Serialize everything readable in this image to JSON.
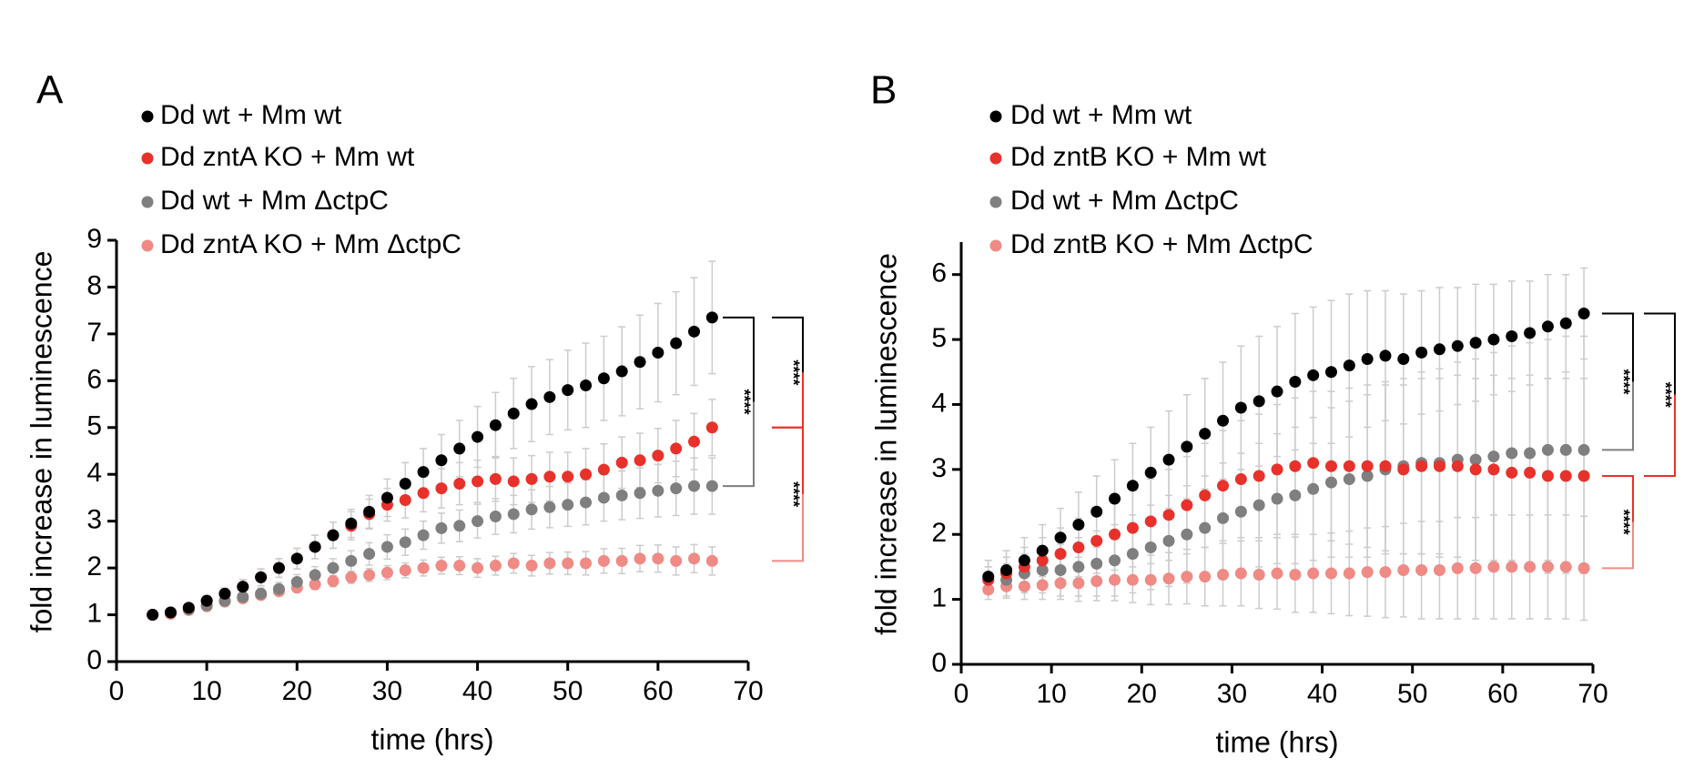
{
  "chart_data": [
    {
      "type": "scatter",
      "panel_label": "A",
      "xlabel": "time (hrs)",
      "ylabel": "fold increase in luminescence",
      "xlim": [
        0,
        70
      ],
      "xticks": [
        0,
        10,
        20,
        30,
        40,
        50,
        60,
        70
      ],
      "ylim": [
        0,
        9
      ],
      "yticks": [
        0,
        1,
        2,
        3,
        4,
        5,
        6,
        7,
        8,
        9
      ],
      "error_color": "#cccccc",
      "x": [
        4,
        6,
        8,
        10,
        12,
        14,
        16,
        18,
        20,
        22,
        24,
        26,
        28,
        30,
        32,
        34,
        36,
        38,
        40,
        42,
        44,
        46,
        48,
        50,
        52,
        54,
        56,
        58,
        60,
        62,
        64,
        66
      ],
      "series": [
        {
          "name": "Dd wt + Mm wt",
          "color": "#000000",
          "values": [
            1.0,
            1.05,
            1.15,
            1.3,
            1.45,
            1.6,
            1.8,
            2.0,
            2.2,
            2.45,
            2.7,
            2.95,
            3.2,
            3.5,
            3.8,
            4.05,
            4.3,
            4.55,
            4.8,
            5.05,
            5.3,
            5.5,
            5.65,
            5.8,
            5.9,
            6.05,
            6.2,
            6.4,
            6.6,
            6.8,
            7.05,
            7.35
          ],
          "errors": [
            0.03,
            0.05,
            0.07,
            0.1,
            0.12,
            0.15,
            0.18,
            0.2,
            0.22,
            0.25,
            0.28,
            0.3,
            0.35,
            0.4,
            0.45,
            0.5,
            0.55,
            0.6,
            0.65,
            0.7,
            0.75,
            0.8,
            0.8,
            0.85,
            0.9,
            0.9,
            0.95,
            1.0,
            1.05,
            1.1,
            1.15,
            1.2
          ]
        },
        {
          "name": "Dd zntA KO + Mm wt",
          "color": "#e8312a",
          "values": [
            1.0,
            1.05,
            1.15,
            1.3,
            1.45,
            1.6,
            1.8,
            2.0,
            2.2,
            2.45,
            2.7,
            2.9,
            3.15,
            3.35,
            3.45,
            3.6,
            3.7,
            3.8,
            3.85,
            3.9,
            3.85,
            3.9,
            3.95,
            3.95,
            4.0,
            4.1,
            4.25,
            4.3,
            4.4,
            4.55,
            4.7,
            5.0
          ],
          "errors": [
            0.03,
            0.05,
            0.07,
            0.1,
            0.12,
            0.15,
            0.18,
            0.2,
            0.22,
            0.25,
            0.28,
            0.3,
            0.32,
            0.35,
            0.38,
            0.4,
            0.42,
            0.45,
            0.45,
            0.48,
            0.5,
            0.5,
            0.52,
            0.52,
            0.55,
            0.55,
            0.55,
            0.58,
            0.58,
            0.6,
            0.6,
            0.6
          ]
        },
        {
          "name": "Dd wt + Mm ΔctpC",
          "color": "#7f7f7f",
          "values": [
            1.0,
            1.05,
            1.12,
            1.2,
            1.3,
            1.38,
            1.45,
            1.55,
            1.7,
            1.85,
            2.0,
            2.15,
            2.3,
            2.45,
            2.55,
            2.7,
            2.85,
            2.9,
            3.0,
            3.1,
            3.15,
            3.25,
            3.3,
            3.35,
            3.4,
            3.5,
            3.55,
            3.6,
            3.65,
            3.7,
            3.75,
            3.75
          ],
          "errors": [
            0.03,
            0.04,
            0.05,
            0.06,
            0.08,
            0.1,
            0.12,
            0.14,
            0.16,
            0.18,
            0.2,
            0.22,
            0.24,
            0.26,
            0.28,
            0.3,
            0.32,
            0.34,
            0.36,
            0.38,
            0.4,
            0.42,
            0.44,
            0.46,
            0.48,
            0.5,
            0.52,
            0.54,
            0.56,
            0.58,
            0.6,
            0.6
          ]
        },
        {
          "name": "Dd zntA KO + Mm ΔctpC",
          "color": "#ef8a85",
          "values": [
            1.0,
            1.02,
            1.1,
            1.18,
            1.28,
            1.35,
            1.42,
            1.5,
            1.58,
            1.65,
            1.72,
            1.8,
            1.85,
            1.9,
            1.95,
            2.0,
            2.05,
            2.05,
            2.0,
            2.05,
            2.1,
            2.05,
            2.1,
            2.1,
            2.1,
            2.15,
            2.15,
            2.2,
            2.2,
            2.15,
            2.2,
            2.15
          ],
          "errors": [
            0.03,
            0.03,
            0.04,
            0.05,
            0.06,
            0.07,
            0.08,
            0.09,
            0.1,
            0.11,
            0.12,
            0.13,
            0.14,
            0.15,
            0.16,
            0.17,
            0.18,
            0.19,
            0.2,
            0.2,
            0.21,
            0.22,
            0.23,
            0.24,
            0.25,
            0.26,
            0.27,
            0.28,
            0.29,
            0.3,
            0.3,
            0.3
          ]
        }
      ],
      "comparisons": [
        {
          "series": [
            0,
            2
          ],
          "label": "****"
        },
        {
          "series": [
            0,
            1
          ],
          "label": "****"
        },
        {
          "series": [
            1,
            3
          ],
          "label": "****"
        }
      ]
    },
    {
      "type": "scatter",
      "panel_label": "B",
      "xlabel": "time (hrs)",
      "ylabel": "fold increase in luminescence",
      "xlim": [
        0,
        70
      ],
      "xticks": [
        0,
        10,
        20,
        30,
        40,
        50,
        60,
        70
      ],
      "ylim": [
        0,
        6.5
      ],
      "yticks": [
        0,
        1,
        2,
        3,
        4,
        5,
        6
      ],
      "error_color": "#cccccc",
      "x": [
        3,
        5,
        7,
        9,
        11,
        13,
        15,
        17,
        19,
        21,
        23,
        25,
        27,
        29,
        31,
        33,
        35,
        37,
        39,
        41,
        43,
        45,
        47,
        49,
        51,
        53,
        55,
        57,
        59,
        61,
        63,
        65,
        67,
        69
      ],
      "series": [
        {
          "name": "Dd wt + Mm wt",
          "color": "#000000",
          "values": [
            1.35,
            1.45,
            1.6,
            1.75,
            1.95,
            2.15,
            2.35,
            2.55,
            2.75,
            2.95,
            3.15,
            3.35,
            3.55,
            3.75,
            3.95,
            4.05,
            4.2,
            4.35,
            4.45,
            4.5,
            4.6,
            4.7,
            4.75,
            4.7,
            4.8,
            4.85,
            4.9,
            4.95,
            5.0,
            5.05,
            5.1,
            5.2,
            5.25,
            5.4
          ],
          "errors": [
            0.25,
            0.3,
            0.35,
            0.4,
            0.45,
            0.5,
            0.55,
            0.6,
            0.65,
            0.7,
            0.75,
            0.8,
            0.85,
            0.9,
            0.95,
            1.0,
            1.0,
            1.05,
            1.05,
            1.1,
            1.1,
            1.05,
            1.0,
            1.0,
            0.95,
            0.95,
            0.9,
            0.9,
            0.85,
            0.85,
            0.8,
            0.8,
            0.75,
            0.7
          ]
        },
        {
          "name": "Dd zntB KO + Mm wt",
          "color": "#e8312a",
          "values": [
            1.3,
            1.4,
            1.5,
            1.6,
            1.7,
            1.8,
            1.9,
            2.0,
            2.1,
            2.2,
            2.3,
            2.45,
            2.6,
            2.75,
            2.85,
            2.9,
            3.0,
            3.05,
            3.1,
            3.05,
            3.05,
            3.05,
            3.05,
            3.0,
            3.05,
            3.05,
            3.05,
            3.0,
            3.0,
            2.95,
            2.95,
            2.9,
            2.9,
            2.9
          ],
          "errors": [
            0.2,
            0.25,
            0.3,
            0.35,
            0.4,
            0.45,
            0.5,
            0.55,
            0.6,
            0.65,
            0.7,
            0.75,
            0.8,
            0.85,
            0.9,
            0.95,
            1.0,
            1.05,
            1.1,
            1.15,
            1.2,
            1.25,
            1.3,
            1.3,
            1.35,
            1.35,
            1.4,
            1.4,
            1.45,
            1.45,
            1.5,
            1.5,
            1.5,
            1.5
          ]
        },
        {
          "name": "Dd wt + Mm ΔctpC",
          "color": "#7f7f7f",
          "values": [
            1.3,
            1.3,
            1.4,
            1.45,
            1.45,
            1.5,
            1.55,
            1.6,
            1.7,
            1.8,
            1.9,
            2.0,
            2.1,
            2.25,
            2.35,
            2.45,
            2.55,
            2.6,
            2.7,
            2.8,
            2.85,
            2.9,
            3.0,
            3.05,
            3.1,
            3.1,
            3.15,
            3.15,
            3.2,
            3.25,
            3.25,
            3.3,
            3.3,
            3.3
          ],
          "errors": [
            0.2,
            0.25,
            0.3,
            0.35,
            0.4,
            0.45,
            0.5,
            0.55,
            0.6,
            0.65,
            0.7,
            0.75,
            0.8,
            0.85,
            0.9,
            0.95,
            1.0,
            1.05,
            1.1,
            1.15,
            1.2,
            1.25,
            1.3,
            1.35,
            1.4,
            1.45,
            1.5,
            1.55,
            1.6,
            1.65,
            1.7,
            1.7,
            1.75,
            1.75
          ]
        },
        {
          "name": "Dd zntB KO + Mm ΔctpC",
          "color": "#ef8a85",
          "values": [
            1.15,
            1.2,
            1.2,
            1.22,
            1.25,
            1.25,
            1.28,
            1.3,
            1.3,
            1.3,
            1.32,
            1.35,
            1.35,
            1.38,
            1.4,
            1.38,
            1.4,
            1.38,
            1.4,
            1.4,
            1.4,
            1.42,
            1.42,
            1.45,
            1.45,
            1.45,
            1.48,
            1.48,
            1.5,
            1.5,
            1.5,
            1.5,
            1.5,
            1.48
          ],
          "errors": [
            0.15,
            0.18,
            0.2,
            0.22,
            0.25,
            0.28,
            0.3,
            0.32,
            0.35,
            0.38,
            0.4,
            0.42,
            0.45,
            0.48,
            0.5,
            0.52,
            0.55,
            0.58,
            0.6,
            0.62,
            0.65,
            0.68,
            0.7,
            0.72,
            0.75,
            0.75,
            0.78,
            0.78,
            0.8,
            0.8,
            0.8,
            0.8,
            0.8,
            0.8
          ]
        }
      ],
      "comparisons": [
        {
          "series": [
            0,
            2
          ],
          "label": "****"
        },
        {
          "series": [
            1,
            3
          ],
          "label": "****"
        },
        {
          "series": [
            0,
            1
          ],
          "label": "****"
        }
      ]
    }
  ]
}
